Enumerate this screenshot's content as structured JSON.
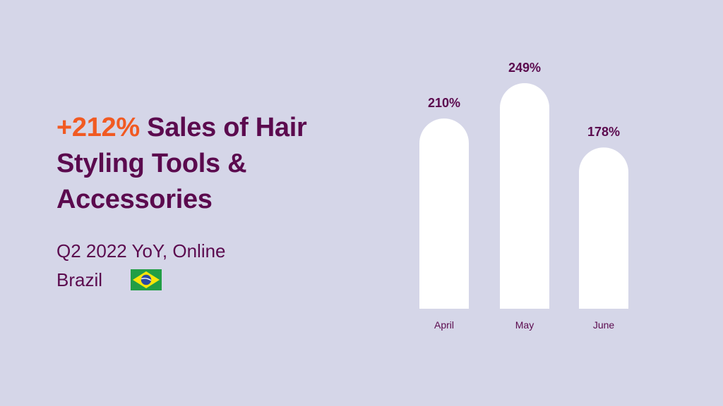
{
  "colors": {
    "background": "#d5d6e8",
    "text": "#5b0a4e",
    "highlight": "#f15a22",
    "bar": "#ffffff",
    "flag_green": "#229e45",
    "flag_yellow": "#f8e509",
    "flag_blue": "#2b49a3"
  },
  "headline": {
    "highlight": "+212%",
    "rest": " Sales of Hair Styling Tools & Accessories"
  },
  "subtitle": {
    "line1": "Q2 2022 YoY, Online",
    "line2": "Brazil"
  },
  "flag": {
    "icon": "brazil-flag-icon"
  },
  "chart_data": {
    "type": "bar",
    "categories": [
      "April",
      "May",
      "June"
    ],
    "values": [
      210,
      249,
      178
    ],
    "value_labels": [
      "210%",
      "249%",
      "178%"
    ],
    "unit": "%",
    "ylim": [
      0,
      249
    ],
    "grid": false,
    "bar_style": "rounded-top"
  }
}
